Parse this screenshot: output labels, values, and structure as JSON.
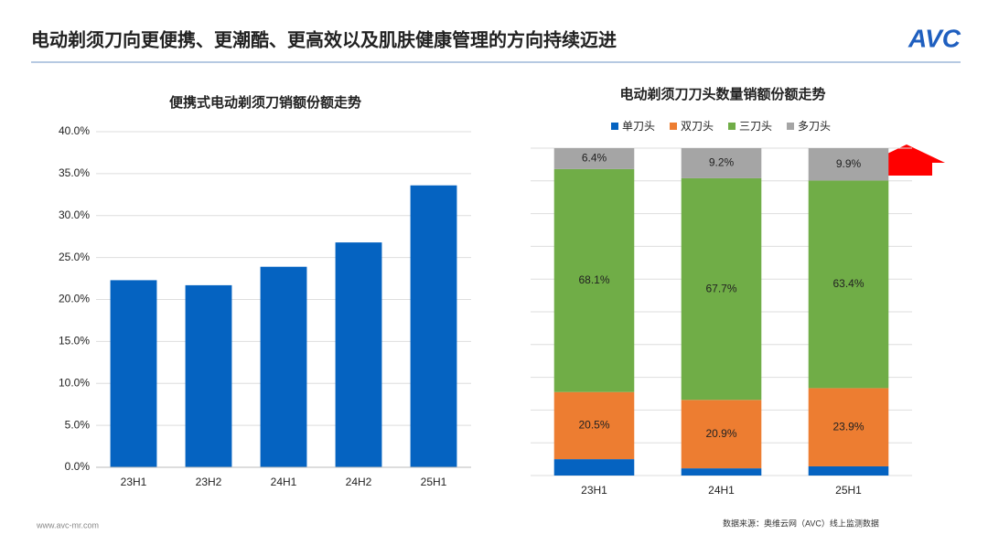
{
  "header": {
    "title": "电动剃须刀向更便携、更潮酷、更高效以及肌肤健康管理的方向持续迈进",
    "logo": "AVC"
  },
  "footer": {
    "url": "www.avc-mr.com",
    "source": "数据来源：奥维云网（AVC）线上监测数据"
  },
  "chart_data": [
    {
      "type": "bar",
      "title": "便携式电动剃须刀销额份额走势",
      "categories": [
        "23H1",
        "23H2",
        "24H1",
        "24H2",
        "25H1"
      ],
      "values": [
        22.3,
        21.7,
        23.9,
        26.8,
        33.6
      ],
      "color": "#0563c1",
      "ylim": [
        0,
        40
      ],
      "yticks": [
        {
          "value": 0,
          "label": "0.0%"
        },
        {
          "value": 5,
          "label": "5.0%"
        },
        {
          "value": 10,
          "label": "10.0%"
        },
        {
          "value": 15,
          "label": "15.0%"
        },
        {
          "value": 20,
          "label": "20.0%"
        },
        {
          "value": 25,
          "label": "25.0%"
        },
        {
          "value": 30,
          "label": "30.0%"
        },
        {
          "value": 35,
          "label": "35.0%"
        },
        {
          "value": 40,
          "label": "40.0%"
        }
      ],
      "grid": true
    },
    {
      "type": "stacked_bar",
      "title": "电动剃须刀刀头数量销额份额走势",
      "categories": [
        "23H1",
        "24H1",
        "25H1"
      ],
      "series": [
        {
          "name": "单刀头",
          "color": "#0563c1",
          "values": [
            5.0,
            2.2,
            2.8
          ]
        },
        {
          "name": "双刀头",
          "color": "#ed7d31",
          "values": [
            20.5,
            20.9,
            23.9
          ],
          "value_labels": [
            "20.5%",
            "20.9%",
            "23.9%"
          ]
        },
        {
          "name": "三刀头",
          "color": "#70ad47",
          "values": [
            68.1,
            67.7,
            63.4
          ],
          "value_labels": [
            "68.1%",
            "67.7%",
            "63.4%"
          ]
        },
        {
          "name": "多刀头",
          "color": "#a5a5a5",
          "values": [
            6.4,
            9.2,
            9.9
          ],
          "value_labels": [
            "6.4%",
            "9.2%",
            "9.9%"
          ]
        }
      ],
      "ylim": [
        0,
        100
      ],
      "yticks": [
        0,
        10,
        20,
        30,
        40,
        50,
        60,
        70,
        80,
        90,
        100
      ],
      "show_ytick_labels": false,
      "grid": true,
      "legend": "top"
    }
  ]
}
